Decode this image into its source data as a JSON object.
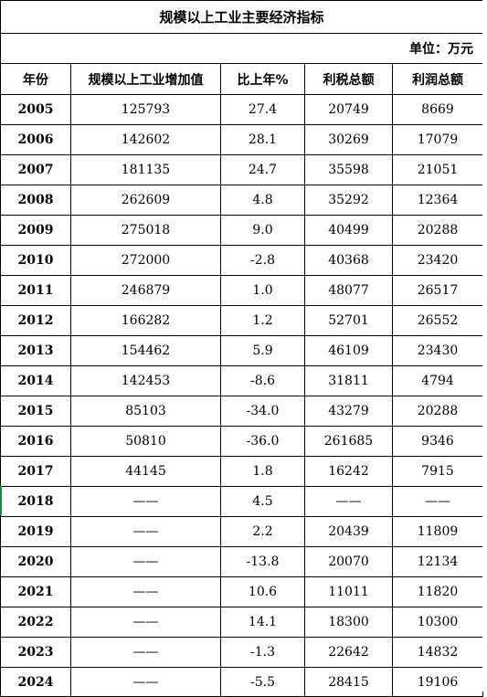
{
  "table": {
    "title": "规模以上工业主要经济指标",
    "unit": "单位：万元",
    "headers": [
      "年份",
      "规模以上工业增加值",
      "比上年%",
      "利税总额",
      "利润总额"
    ],
    "rows": [
      [
        "2005",
        "125793",
        "27.4",
        "20749",
        "8669"
      ],
      [
        "2006",
        "142602",
        "28.1",
        "30269",
        "17079"
      ],
      [
        "2007",
        "181135",
        "24.7",
        "35598",
        "21051"
      ],
      [
        "2008",
        "262609",
        "4.8",
        "35292",
        "12364"
      ],
      [
        "2009",
        "275018",
        "9.0",
        "40499",
        "20288"
      ],
      [
        "2010",
        "272000",
        "-2.8",
        "40368",
        "23420"
      ],
      [
        "2011",
        "246879",
        "1.0",
        "48077",
        "26517"
      ],
      [
        "2012",
        "166282",
        "1.2",
        "52701",
        "26552"
      ],
      [
        "2013",
        "154462",
        "5.9",
        "46109",
        "23430"
      ],
      [
        "2014",
        "142453",
        "-8.6",
        "31811",
        "4794"
      ],
      [
        "2015",
        "85103",
        "-34.0",
        "43279",
        "20288"
      ],
      [
        "2016",
        "50810",
        "-36.0",
        "261685",
        "9346"
      ],
      [
        "2017",
        "44145",
        "1.8",
        "16242",
        "7915"
      ],
      [
        "2018",
        "——",
        "4.5",
        "——",
        "——"
      ],
      [
        "2019",
        "——",
        "2.2",
        "20439",
        "11809"
      ],
      [
        "2020",
        "——",
        "-13.8",
        "20070",
        "12134"
      ],
      [
        "2021",
        "——",
        "10.6",
        "11011",
        "11820"
      ],
      [
        "2022",
        "——",
        "14.1",
        "18300",
        "10300"
      ],
      [
        "2023",
        "——",
        "-1.3",
        "22642",
        "14832"
      ],
      [
        "2024",
        "——",
        "-5.5",
        "28415",
        "19106"
      ]
    ],
    "selected_row_accent": "#1e8a4a"
  }
}
